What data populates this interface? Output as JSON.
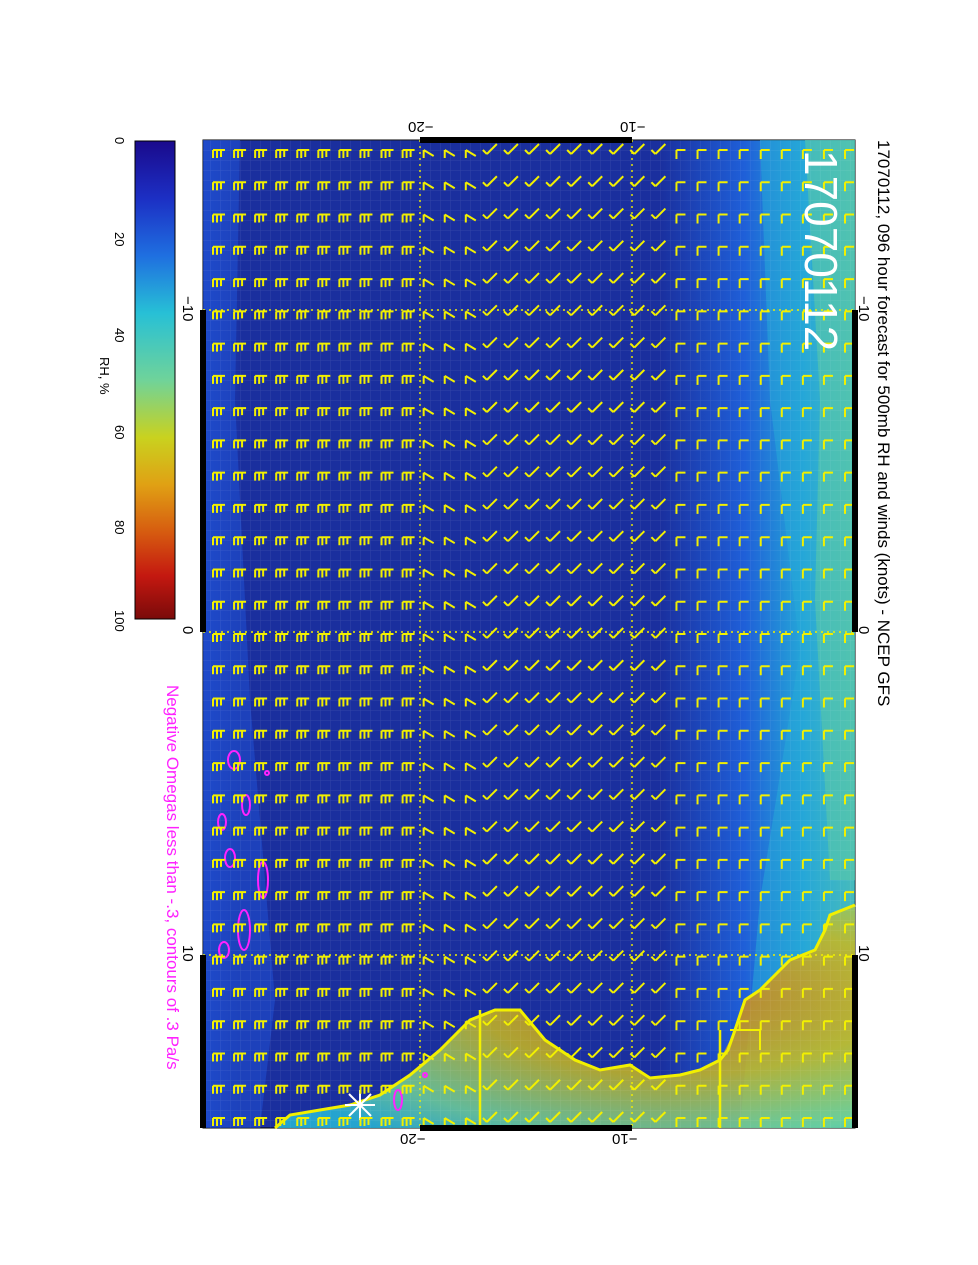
{
  "header": {
    "title": "17070112, 096 hour forecast for 500mb RH and winds (knots) - NCEP GFS",
    "date_stamp": "17070112",
    "omega_note": "Negative Omegas less than -.3, contours of .3 Pa/s"
  },
  "colorbar": {
    "label": "RH, %",
    "ticks": [
      "0",
      "20",
      "40",
      "60",
      "80",
      "100"
    ],
    "colors": [
      "#1a0a8c",
      "#1c2fc4",
      "#1f6fe0",
      "#27b8d8",
      "#6fd39a",
      "#c9d21f",
      "#e0a014",
      "#d65a10",
      "#b01010",
      "#7a0a0a"
    ]
  },
  "map_ticks": {
    "top": [
      "−20",
      "−10"
    ],
    "bottom": [
      "−20",
      "−10"
    ],
    "left": [
      "−10",
      "0",
      "10"
    ],
    "right": [
      "−10",
      "0",
      "10"
    ]
  },
  "colors": {
    "wind_barbs": "#f2f000",
    "coastline": "#f2f000",
    "omega_contours": "#ff22ff",
    "ocean": "#1a2f9e"
  }
}
